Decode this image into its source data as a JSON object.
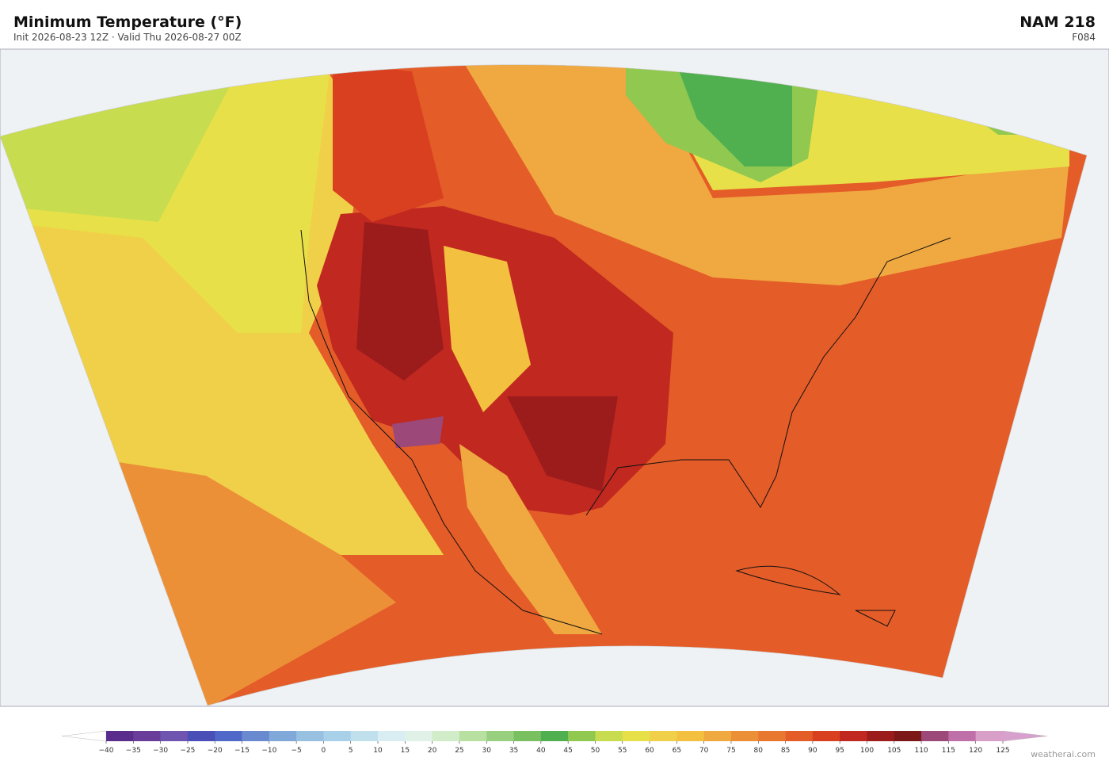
{
  "header": {
    "title": "Minimum Temperature  (°F)",
    "subtitle": "Init 2026-08-23 12Z  ·  Valid Thu 2026-08-27 00Z",
    "model": "NAM  218",
    "forecast_hour": "F084"
  },
  "colorbar": {
    "ticks": [
      {
        "value": -40,
        "label": "−40"
      },
      {
        "value": -35,
        "label": "−35"
      },
      {
        "value": -30,
        "label": "−30"
      },
      {
        "value": -25,
        "label": "−25"
      },
      {
        "value": -20,
        "label": "−20"
      },
      {
        "value": -15,
        "label": "−15"
      },
      {
        "value": -10,
        "label": "−10"
      },
      {
        "value": -5,
        "label": "−5"
      },
      0,
      5,
      10,
      15,
      20,
      25,
      30,
      35,
      40,
      45,
      50,
      55,
      60,
      65,
      70,
      75,
      80,
      85,
      90,
      95,
      100,
      105,
      110,
      115,
      120,
      125
    ],
    "colors": [
      "#5a2d8c",
      "#6a3d9a",
      "#7055b0",
      "#4a4fb8",
      "#5068c8",
      "#6a8ad0",
      "#80a8d8",
      "#98c0e0",
      "#a8d0e8",
      "#c0e0ee",
      "#d8eef2",
      "#e0f2e8",
      "#d0ecc8",
      "#b8e0a0",
      "#98d080",
      "#78c060",
      "#50b050",
      "#90c850",
      "#c8dc50",
      "#e8e048",
      "#f0d048",
      "#f4c040",
      "#f0a840",
      "#ec9038",
      "#e87830",
      "#e45c28",
      "#d84020",
      "#c02820",
      "#9c1c1c",
      "#7c1818",
      "#9c4878",
      "#c070a8",
      "#d8a0c8"
    ],
    "under_color": "#ffffff",
    "over_color": "#d8a0cc"
  },
  "footer": {
    "credit": "weatherai.com"
  }
}
